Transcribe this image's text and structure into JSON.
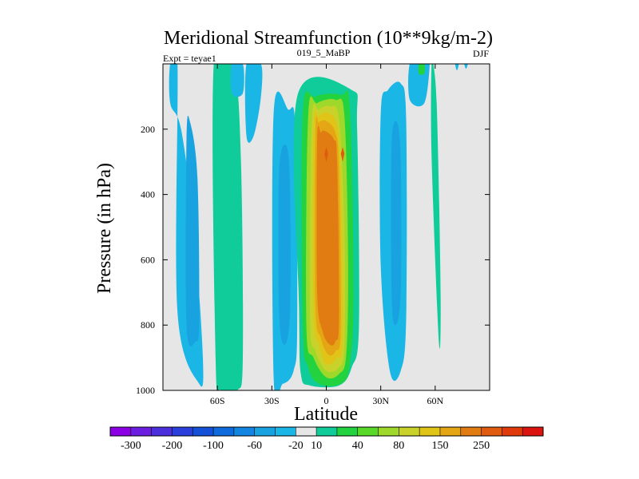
{
  "chart_data": {
    "type": "heatmap",
    "title": "Meridional Streamfunction (10**9kg/m-2)",
    "subtitle_left": "Expt = teyae1",
    "subtitle_center": "019_5_MaBP",
    "subtitle_right": "DJF",
    "xlabel": "Latitude",
    "ylabel": "Pressure (in hPa)",
    "xlim": [
      -90,
      90
    ],
    "ylim": [
      1000,
      0
    ],
    "x_ticks": [
      {
        "value": -60,
        "label": "60S"
      },
      {
        "value": -30,
        "label": "30S"
      },
      {
        "value": 0,
        "label": "0"
      },
      {
        "value": 30,
        "label": "30N"
      },
      {
        "value": 60,
        "label": "60N"
      }
    ],
    "y_ticks": [
      {
        "value": 200,
        "label": "200"
      },
      {
        "value": 400,
        "label": "400"
      },
      {
        "value": 600,
        "label": "600"
      },
      {
        "value": 800,
        "label": "800"
      },
      {
        "value": 1000,
        "label": "1000"
      }
    ],
    "colorbar": {
      "colors": [
        "#8c00e6",
        "#6b1ee0",
        "#4c2fdc",
        "#2a3fdc",
        "#1550d8",
        "#0f6adc",
        "#1185e0",
        "#18a2e0",
        "#1ab6e6",
        "#e6e6e6",
        "#10cc9a",
        "#22d23e",
        "#58d828",
        "#9ed82a",
        "#c8d22a",
        "#e0c418",
        "#e4a614",
        "#e07c12",
        "#e05a10",
        "#e03a0c",
        "#dc1410"
      ],
      "labels": [
        "-300",
        "-200",
        "-100",
        "-60",
        "-20",
        "10",
        "40",
        "80",
        "150",
        "250"
      ],
      "label_positions": [
        1,
        3,
        5,
        7,
        9,
        10,
        12,
        14,
        16,
        18
      ]
    },
    "fields": {
      "background": "#e6e6e6",
      "bands": [
        {
          "name": "sh-outer-cell",
          "color": "#1ab6e6",
          "lat": [
            -82,
            -82,
            -70,
            -68,
            -73,
            -80,
            -86,
            -86
          ],
          "p": [
            0,
            760,
            980,
            900,
            500,
            200,
            120,
            0
          ]
        },
        {
          "name": "sh-outer-core",
          "color": "#18a2e0",
          "lat": [
            -77,
            -77,
            -72,
            -70,
            -71,
            -75
          ],
          "p": [
            230,
            800,
            850,
            780,
            350,
            180
          ]
        },
        {
          "name": "sh-ferrel-green",
          "color": "#22d23e",
          "lat": [
            -60,
            -60,
            -57,
            -52,
            -49,
            -48,
            -51,
            -54
          ],
          "p": [
            0,
            700,
            990,
            980,
            840,
            500,
            200,
            0
          ]
        },
        {
          "name": "sh-ferrel-teal",
          "color": "#10cc9a",
          "lat": [
            -62,
            -61,
            -58,
            -49,
            -46,
            -47,
            -51
          ],
          "p": [
            0,
            900,
            1000,
            1000,
            900,
            300,
            0
          ]
        },
        {
          "name": "sh-mid-cell",
          "color": "#1ab6e6",
          "lat": [
            -29,
            -29,
            -24,
            -18,
            -16,
            -17,
            -21
          ],
          "p": [
            150,
            960,
            980,
            940,
            800,
            200,
            140
          ]
        },
        {
          "name": "sh-mid-core",
          "color": "#18a2e0",
          "lat": [
            -26,
            -26,
            -23,
            -20,
            -20,
            -22
          ],
          "p": [
            330,
            760,
            860,
            760,
            380,
            250
          ]
        },
        {
          "name": "sh-upper-strip",
          "color": "#1ab6e6",
          "lat": [
            -44,
            -44,
            -40,
            -36,
            -36
          ],
          "p": [
            0,
            220,
            220,
            100,
            0
          ]
        },
        {
          "name": "polar-strip",
          "color": "#1ab6e6",
          "lat": [
            -52,
            -52,
            -46,
            -46
          ],
          "p": [
            0,
            90,
            90,
            0
          ]
        },
        {
          "name": "hadley-teal",
          "color": "#10cc9a",
          "lat": [
            -16,
            -15,
            -14,
            -9,
            7,
            14,
            18,
            17,
            14
          ],
          "p": [
            100,
            750,
            950,
            985,
            985,
            930,
            800,
            200,
            80
          ]
        },
        {
          "name": "hadley-green",
          "color": "#22d23e",
          "lat": [
            -13,
            -13,
            -10,
            -4,
            8,
            13,
            15,
            13,
            8,
            -6
          ],
          "p": [
            150,
            800,
            930,
            980,
            980,
            920,
            700,
            140,
            95,
            100
          ]
        },
        {
          "name": "hadley-yellowgreen",
          "color": "#9ed82a",
          "lat": [
            -10,
            -11,
            -7,
            0,
            7,
            11,
            12,
            10,
            5,
            -5
          ],
          "p": [
            160,
            800,
            900,
            960,
            950,
            890,
            600,
            160,
            110,
            120
          ]
        },
        {
          "name": "hadley-yellow",
          "color": "#c8d22a",
          "lat": [
            -8,
            -9,
            -6,
            0,
            7,
            10,
            10,
            7,
            2,
            -4
          ],
          "p": [
            180,
            780,
            880,
            940,
            930,
            860,
            500,
            170,
            130,
            140
          ]
        },
        {
          "name": "hadley-gold",
          "color": "#e0c418",
          "lat": [
            -7,
            -7,
            -4,
            0,
            6,
            9,
            8,
            6,
            1,
            -4
          ],
          "p": [
            200,
            760,
            860,
            920,
            900,
            840,
            350,
            190,
            150,
            160
          ]
        },
        {
          "name": "hadley-orange",
          "color": "#e4a614",
          "lat": [
            -6,
            -6,
            -3,
            1,
            5,
            8,
            7,
            5,
            0,
            -4
          ],
          "p": [
            210,
            740,
            840,
            890,
            880,
            810,
            320,
            210,
            175,
            180
          ]
        },
        {
          "name": "hadley-deep-orange",
          "color": "#e07c12",
          "lat": [
            -5,
            -5,
            -2,
            2,
            5,
            7,
            6,
            4,
            -1,
            -3
          ],
          "p": [
            230,
            700,
            820,
            860,
            850,
            780,
            300,
            230,
            205,
            210
          ]
        },
        {
          "name": "hadley-max-a",
          "color": "#e05a10",
          "lat": [
            -1,
            0,
            1,
            0
          ],
          "p": [
            275,
            255,
            275,
            300
          ]
        },
        {
          "name": "hadley-max-b",
          "color": "#e05a10",
          "lat": [
            8,
            9,
            10,
            9
          ],
          "p": [
            275,
            255,
            275,
            300
          ]
        },
        {
          "name": "nh-mid-cell",
          "color": "#1ab6e6",
          "lat": [
            30,
            30,
            35,
            41,
            44,
            44,
            41,
            34
          ],
          "p": [
            150,
            620,
            940,
            940,
            780,
            170,
            60,
            80
          ]
        },
        {
          "name": "nh-mid-core",
          "color": "#18a2e0",
          "lat": [
            36,
            36,
            38,
            41,
            41,
            39
          ],
          "p": [
            250,
            700,
            800,
            700,
            300,
            180
          ]
        },
        {
          "name": "nh-upper-strip",
          "color": "#1ab6e6",
          "lat": [
            46,
            46,
            54,
            57,
            55,
            52
          ],
          "p": [
            0,
            110,
            120,
            0,
            0,
            0
          ]
        },
        {
          "name": "nh-teal-strip",
          "color": "#10cc9a",
          "lat": [
            58,
            58,
            62,
            63,
            61,
            59
          ],
          "p": [
            0,
            280,
            850,
            700,
            150,
            0
          ]
        },
        {
          "name": "nh-green-tip",
          "color": "#22d23e",
          "lat": [
            51,
            51,
            54,
            54
          ],
          "p": [
            0,
            30,
            30,
            0
          ]
        },
        {
          "name": "nh-polar-sliver",
          "color": "#1ab6e6",
          "lat": [
            71,
            72,
            73,
            72
          ],
          "p": [
            0,
            20,
            0,
            0
          ]
        },
        {
          "name": "nh-polar-sliver-b",
          "color": "#1ab6e6",
          "lat": [
            76,
            77,
            78,
            77
          ],
          "p": [
            0,
            15,
            0,
            0
          ]
        }
      ]
    }
  }
}
